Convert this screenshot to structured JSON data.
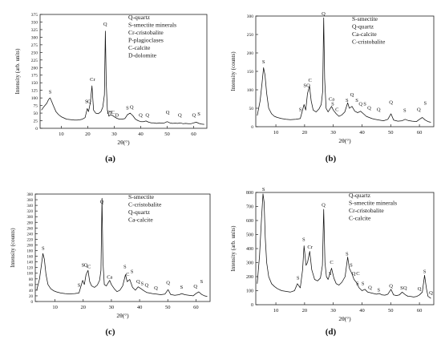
{
  "chart_data": [
    {
      "type": "line",
      "caption": "(a)",
      "xlabel": "2θ(°)",
      "ylabel": "Intensity (arb. units)",
      "xlim": [
        2,
        65
      ],
      "ylim": [
        0,
        375
      ],
      "xticks": [
        10,
        20,
        30,
        40,
        50,
        60
      ],
      "yticks": [
        0,
        25,
        50,
        75,
        100,
        125,
        150,
        175,
        200,
        225,
        250,
        275,
        300,
        325,
        350,
        375
      ],
      "legend": [
        "Q-quartz",
        "S-smectite minerals",
        "Cr-cristobalite",
        "P-plagioclases",
        "C-calcite",
        "D-dolomite"
      ],
      "legend_position": "top-right",
      "series": [
        {
          "x": [
            2.5,
            3.5,
            4.5,
            5.2,
            5.8,
            6.3,
            7,
            8,
            9,
            10,
            11,
            12,
            13,
            14,
            15,
            16,
            17,
            18,
            19,
            19.8,
            20.3,
            21,
            21.6,
            22.2,
            23,
            24,
            25,
            25.7,
            26.3,
            26.65,
            27,
            27.4,
            28,
            28.6,
            29.4,
            30,
            31,
            32,
            33,
            34,
            35,
            36,
            37,
            38,
            39,
            40,
            41,
            42,
            43,
            44,
            45,
            46,
            47,
            48,
            49,
            50,
            51,
            52,
            53,
            54,
            55,
            56,
            57,
            58,
            59,
            60,
            61,
            62,
            63,
            64
          ],
          "y": [
            60,
            72,
            82,
            95,
            100,
            90,
            75,
            55,
            45,
            38,
            34,
            30,
            29,
            28,
            27,
            27,
            28,
            30,
            35,
            65,
            55,
            85,
            140,
            60,
            50,
            48,
            55,
            70,
            110,
            320,
            150,
            60,
            40,
            45,
            42,
            38,
            33,
            30,
            30,
            32,
            45,
            50,
            42,
            30,
            25,
            22,
            22,
            24,
            20,
            18,
            18,
            16,
            18,
            17,
            18,
            22,
            18,
            16,
            17,
            16,
            18,
            15,
            16,
            15,
            15,
            18,
            20,
            16,
            14,
            13
          ]
        }
      ],
      "labels": [
        {
          "text": "S",
          "x": 5.8,
          "y": 112
        },
        {
          "text": "S",
          "x": 19.5,
          "y": 80
        },
        {
          "text": "Q",
          "x": 20.6,
          "y": 80
        },
        {
          "text": "Cr",
          "x": 21.8,
          "y": 153
        },
        {
          "text": "Q",
          "x": 26.6,
          "y": 335
        },
        {
          "text": "P",
          "x": 27.8,
          "y": 45
        },
        {
          "text": "S",
          "x": 28.7,
          "y": 45
        },
        {
          "text": "C",
          "x": 29.5,
          "y": 45
        },
        {
          "text": "D",
          "x": 31,
          "y": 35
        },
        {
          "text": "S",
          "x": 35,
          "y": 60
        },
        {
          "text": "Q",
          "x": 36.6,
          "y": 62
        },
        {
          "text": "Q",
          "x": 40,
          "y": 35
        },
        {
          "text": "Q",
          "x": 42.5,
          "y": 35
        },
        {
          "text": "Q",
          "x": 50.2,
          "y": 45
        },
        {
          "text": "Q",
          "x": 54.8,
          "y": 35
        },
        {
          "text": "Q",
          "x": 60.1,
          "y": 35
        },
        {
          "text": "S",
          "x": 62,
          "y": 40
        }
      ]
    },
    {
      "type": "line",
      "caption": "(b)",
      "xlabel": "2θ(°)",
      "ylabel": "Intensity (counts)",
      "xlim": [
        3,
        65
      ],
      "ylim": [
        0,
        300
      ],
      "xticks": [
        10,
        20,
        30,
        40,
        50,
        60
      ],
      "yticks": [
        0,
        50,
        100,
        150,
        200,
        250,
        300
      ],
      "legend": [
        "S-smectite",
        "Q-quartz",
        "Ca-calcite",
        "C-cristobalite"
      ],
      "legend_position": "top-right",
      "series": [
        {
          "x": [
            3.5,
            4.5,
            5.2,
            5.7,
            6.2,
            6.8,
            7.5,
            8.5,
            9.5,
            10.5,
            12,
            13.5,
            15,
            17,
            18.5,
            19.8,
            20.4,
            21,
            21.7,
            22.3,
            23,
            24,
            25,
            25.8,
            26.3,
            26.65,
            27,
            27.5,
            28.2,
            29.4,
            30,
            31,
            32,
            33,
            34,
            35,
            35.6,
            36.5,
            37.5,
            38.5,
            39.5,
            40.5,
            41.5,
            42.5,
            43.5,
            44.5,
            46,
            47.5,
            49,
            50.1,
            51,
            52.5,
            54,
            55,
            56,
            57.5,
            59,
            60,
            61,
            62,
            63,
            64
          ],
          "y": [
            30,
            70,
            120,
            160,
            140,
            90,
            50,
            35,
            28,
            25,
            22,
            20,
            19,
            20,
            22,
            60,
            45,
            90,
            110,
            70,
            45,
            40,
            48,
            60,
            95,
            295,
            130,
            50,
            40,
            55,
            45,
            35,
            28,
            32,
            40,
            65,
            50,
            55,
            42,
            38,
            42,
            35,
            28,
            25,
            22,
            20,
            18,
            16,
            20,
            35,
            18,
            15,
            16,
            20,
            17,
            15,
            14,
            20,
            25,
            18,
            14,
            12
          ]
        }
      ],
      "labels": [
        {
          "text": "S",
          "x": 5.7,
          "y": 170
        },
        {
          "text": "S",
          "x": 18.5,
          "y": 40
        },
        {
          "text": "S",
          "x": 20.1,
          "y": 105
        },
        {
          "text": "Q",
          "x": 21.3,
          "y": 105
        },
        {
          "text": "C",
          "x": 21.9,
          "y": 120
        },
        {
          "text": "Q",
          "x": 26.6,
          "y": 300
        },
        {
          "text": "Ca",
          "x": 29.4,
          "y": 68
        },
        {
          "text": "S",
          "x": 29.8,
          "y": 55
        },
        {
          "text": "C",
          "x": 31.3,
          "y": 40
        },
        {
          "text": "S",
          "x": 34.8,
          "y": 65
        },
        {
          "text": "Q",
          "x": 36.5,
          "y": 80
        },
        {
          "text": "S",
          "x": 38.2,
          "y": 65
        },
        {
          "text": "Q",
          "x": 39.5,
          "y": 55
        },
        {
          "text": "S",
          "x": 41,
          "y": 55
        },
        {
          "text": "Q",
          "x": 42.5,
          "y": 45
        },
        {
          "text": "Q",
          "x": 45.8,
          "y": 40
        },
        {
          "text": "Q",
          "x": 50.1,
          "y": 60
        },
        {
          "text": "S",
          "x": 54.9,
          "y": 38
        },
        {
          "text": "Q",
          "x": 59.8,
          "y": 40
        },
        {
          "text": "S",
          "x": 62,
          "y": 58
        }
      ]
    },
    {
      "type": "line",
      "caption": "(c)",
      "xlabel": "2θ(°)",
      "ylabel": "Intensity (counts)",
      "xlim": [
        3,
        65
      ],
      "ylim": [
        0,
        380
      ],
      "xticks": [
        10,
        20,
        30,
        40,
        50,
        60
      ],
      "yticks": [
        0,
        20,
        40,
        60,
        80,
        100,
        120,
        140,
        160,
        180,
        200,
        220,
        240,
        260,
        280,
        300,
        320,
        340,
        360,
        380
      ],
      "legend": [
        "S-smectite",
        "C-cristobalite",
        "Q-quartz",
        "Ca-calcite"
      ],
      "legend_position": "top-right",
      "series": [
        {
          "x": [
            3.5,
            4.5,
            5.2,
            5.7,
            6.2,
            6.8,
            7.5,
            8.5,
            9.5,
            10.5,
            12,
            13.5,
            15,
            17,
            18.5,
            19.8,
            20.4,
            21,
            21.7,
            22.3,
            23,
            24,
            25,
            25.8,
            26.3,
            26.65,
            27,
            27.5,
            28.2,
            29.4,
            30,
            31,
            32,
            33,
            34,
            35,
            35.6,
            36.5,
            37.5,
            38.5,
            39.5,
            40.5,
            41.5,
            42.5,
            43.5,
            44.5,
            46,
            47.5,
            49,
            50.1,
            51,
            52.5,
            54,
            55,
            56,
            57.5,
            59,
            60,
            61,
            62,
            63,
            64
          ],
          "y": [
            40,
            80,
            130,
            170,
            150,
            95,
            60,
            45,
            38,
            34,
            30,
            28,
            27,
            28,
            30,
            75,
            60,
            95,
            110,
            70,
            55,
            50,
            58,
            75,
            110,
            365,
            140,
            60,
            55,
            75,
            60,
            45,
            35,
            40,
            55,
            95,
            70,
            78,
            50,
            40,
            52,
            45,
            38,
            32,
            30,
            28,
            26,
            24,
            26,
            42,
            25,
            22,
            24,
            28,
            24,
            22,
            20,
            28,
            34,
            25,
            20,
            18
          ]
        }
      ],
      "labels": [
        {
          "text": "S",
          "x": 5.8,
          "y": 180
        },
        {
          "text": "S",
          "x": 18.5,
          "y": 50
        },
        {
          "text": "S",
          "x": 19.9,
          "y": 120
        },
        {
          "text": "Q",
          "x": 20.9,
          "y": 120
        },
        {
          "text": "C",
          "x": 22.1,
          "y": 115
        },
        {
          "text": "Q",
          "x": 26.6,
          "y": 345
        },
        {
          "text": "Ca",
          "x": 29.4,
          "y": 78
        },
        {
          "text": "S",
          "x": 34.8,
          "y": 115
        },
        {
          "text": "C",
          "x": 35.8,
          "y": 88
        },
        {
          "text": "S",
          "x": 37.3,
          "y": 98
        },
        {
          "text": "Q",
          "x": 39.5,
          "y": 62
        },
        {
          "text": "S",
          "x": 40.9,
          "y": 55
        },
        {
          "text": "Q",
          "x": 42.5,
          "y": 50
        },
        {
          "text": "Q",
          "x": 45.8,
          "y": 40
        },
        {
          "text": "Q",
          "x": 50.1,
          "y": 58
        },
        {
          "text": "S",
          "x": 54.9,
          "y": 42
        },
        {
          "text": "Q",
          "x": 59.8,
          "y": 45
        },
        {
          "text": "S",
          "x": 62,
          "y": 62
        }
      ]
    },
    {
      "type": "line",
      "caption": "(d)",
      "xlabel": "2θ(°)",
      "ylabel": "Intensity (arb. units)",
      "xlim": [
        3,
        65
      ],
      "ylim": [
        0,
        800
      ],
      "xticks": [
        10,
        20,
        30,
        40,
        50,
        60
      ],
      "yticks": [
        0,
        100,
        200,
        300,
        400,
        500,
        600,
        700,
        800
      ],
      "legend": [
        "Q-quartz",
        "S-smectite minerals",
        "Cr-cristobalite",
        "C-calcite"
      ],
      "legend_position": "top-right",
      "series": [
        {
          "x": [
            3.5,
            4.3,
            5,
            5.5,
            5.9,
            6.3,
            6.8,
            7.5,
            8.5,
            9.5,
            10.5,
            12,
            13.5,
            15,
            16.5,
            17.5,
            18.5,
            19.3,
            19.8,
            20.5,
            21,
            21.8,
            22.5,
            23.5,
            24.5,
            25.5,
            26.2,
            26.65,
            27.1,
            27.6,
            28.2,
            29.4,
            30.2,
            31,
            32,
            33,
            34.1,
            35,
            35.6,
            36.5,
            37.2,
            38,
            39,
            40,
            41,
            42,
            43,
            44,
            45,
            46,
            47,
            48,
            49,
            50.1,
            51,
            52,
            53,
            54,
            55,
            56,
            57,
            58,
            59,
            60,
            61,
            61.8,
            62.5,
            63,
            64
          ],
          "y": [
            150,
            350,
            620,
            790,
            730,
            480,
            300,
            200,
            150,
            130,
            115,
            100,
            95,
            90,
            100,
            150,
            120,
            250,
            420,
            280,
            300,
            380,
            250,
            180,
            170,
            190,
            280,
            680,
            300,
            200,
            180,
            260,
            190,
            150,
            140,
            160,
            200,
            340,
            260,
            220,
            180,
            160,
            120,
            100,
            110,
            90,
            85,
            80,
            75,
            80,
            70,
            68,
            75,
            110,
            70,
            65,
            70,
            90,
            72,
            60,
            58,
            55,
            58,
            70,
            90,
            210,
            110,
            60,
            45
          ]
        }
      ],
      "labels": [
        {
          "text": "S",
          "x": 5.7,
          "y": 805
        },
        {
          "text": "S",
          "x": 17.7,
          "y": 175
        },
        {
          "text": "S",
          "x": 19.7,
          "y": 450
        },
        {
          "text": "Cr",
          "x": 21.9,
          "y": 395
        },
        {
          "text": "Q",
          "x": 26.6,
          "y": 695
        },
        {
          "text": "C",
          "x": 29.4,
          "y": 285
        },
        {
          "text": "S",
          "x": 28.9,
          "y": 205
        },
        {
          "text": "S",
          "x": 34.8,
          "y": 345
        },
        {
          "text": "S",
          "x": 36.2,
          "y": 265
        },
        {
          "text": "Q",
          "x": 37.1,
          "y": 205
        },
        {
          "text": "C",
          "x": 38.6,
          "y": 205
        },
        {
          "text": "S",
          "x": 38.4,
          "y": 135
        },
        {
          "text": "S",
          "x": 40.3,
          "y": 135
        },
        {
          "text": "Q",
          "x": 42.8,
          "y": 105
        },
        {
          "text": "S",
          "x": 45.8,
          "y": 88
        },
        {
          "text": "Q",
          "x": 50.1,
          "y": 118
        },
        {
          "text": "S",
          "x": 53.8,
          "y": 102
        },
        {
          "text": "Q",
          "x": 55,
          "y": 102
        },
        {
          "text": "Q",
          "x": 60,
          "y": 98
        },
        {
          "text": "S",
          "x": 61.8,
          "y": 220
        },
        {
          "text": "Q",
          "x": 64,
          "y": 68
        }
      ]
    }
  ]
}
